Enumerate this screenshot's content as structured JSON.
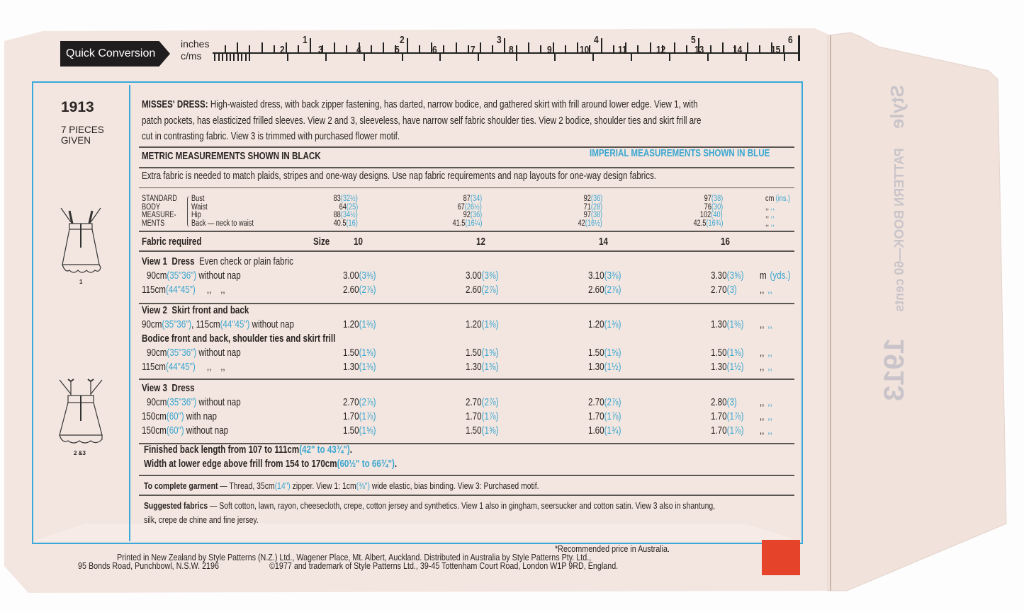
{
  "colors": {
    "paper": "#f3e6e0",
    "frame_blue": "#3aa8d8",
    "imperial_blue": "#3aa6d0",
    "price_box": "#e6432b"
  },
  "ruler": {
    "label": "Quick Conversion",
    "inches_label": "inches",
    "cm_label": "c/ms",
    "inch_ticks": [
      "1",
      "2",
      "3",
      "4",
      "5",
      "6"
    ],
    "cm_ticks": [
      "2",
      "3",
      "4",
      "5",
      "6",
      "7",
      "8",
      "9",
      "10",
      "11",
      "12",
      "13",
      "14",
      "15"
    ]
  },
  "sidebar": {
    "pattern_number": "1913",
    "pieces_line1": "7 PIECES",
    "pieces_line2": "GIVEN",
    "view_label_1": "1",
    "view_label_2": "2 &3"
  },
  "description": {
    "title": "MISSES' DRESS:",
    "line1": " High-waisted dress, with back zipper fastening, has darted, narrow bodice, and gathered skirt with frill around lower edge. View 1, with",
    "line2": "patch pockets, has elasticized frilled sleeves. View 2 and 3, sleeveless, have narrow self fabric shoulder ties. View 2 bodice, shoulder ties and skirt frill are",
    "line3": "cut in contrasting fabric. View 3 is trimmed with purchased flower motif."
  },
  "metric_header": "METRIC MEASUREMENTS SHOWN IN BLACK",
  "imperial_header": "IMPERIAL MEASUREMENTS SHOWN IN BLUE",
  "extra_fabric_note": "Extra fabric is needed to match plaids, stripes and one-way designs. Use nap fabric requirements and nap layouts for one-way design fabrics.",
  "body_measurements": {
    "group_label": [
      "STANDARD",
      "BODY",
      "MEASURE-",
      "MENTS"
    ],
    "rows": [
      {
        "label": "Bust",
        "values": [
          [
            "83",
            "(32½)"
          ],
          [
            "87",
            "(34)"
          ],
          [
            "92",
            "(36)"
          ],
          [
            "97",
            "(38)"
          ]
        ],
        "unit": [
          "cm",
          "(ins.)"
        ]
      },
      {
        "label": "Waist",
        "values": [
          [
            "64",
            "(25)"
          ],
          [
            "67",
            "(26½)"
          ],
          [
            "71",
            "(28)"
          ],
          [
            "76",
            "(30)"
          ]
        ],
        "unit": [
          ",,",
          ",,"
        ]
      },
      {
        "label": "Hip",
        "values": [
          [
            "88",
            "(34½)"
          ],
          [
            "92",
            "(36)"
          ],
          [
            "97",
            "(38)"
          ],
          [
            "102",
            "(40)"
          ]
        ],
        "unit": [
          ",,",
          ",,"
        ]
      },
      {
        "label": "Back — neck to waist",
        "values": [
          [
            "40.5",
            "(16)"
          ],
          [
            "41.5",
            "(16¼)"
          ],
          [
            "42",
            "(16½)"
          ],
          [
            "42.5",
            "(16¾)"
          ]
        ],
        "unit": [
          ",,",
          ",,"
        ]
      }
    ]
  },
  "fabric": {
    "title": "Fabric required",
    "size_label": "Size",
    "sizes": [
      "10",
      "12",
      "14",
      "16"
    ],
    "groups": [
      {
        "heading": "View 1  Dress",
        "heading_note": "  Even check or plain fabric",
        "rows": [
          {
            "parts": [
              [
                "90cm",
                0
              ],
              [
                "(35\"36\")",
                1
              ],
              [
                " without nap",
                0
              ]
            ],
            "values": [
              [
                "3.00",
                "(3⅜)"
              ],
              [
                "3.00",
                "(3⅜)"
              ],
              [
                "3.10",
                "(3⅜)"
              ],
              [
                "3.30",
                "(3⅝)"
              ]
            ],
            "unit": [
              "m",
              "(yds.)"
            ]
          },
          {
            "parts": [
              [
                "115cm",
                0
              ],
              [
                "(44\"45\")",
                1
              ],
              [
                "     ,,    ,,",
                0
              ]
            ],
            "values": [
              [
                "2.60",
                "(2⅞)"
              ],
              [
                "2.60",
                "(2⅞)"
              ],
              [
                "2.60",
                "(2⅞)"
              ],
              [
                "2.70",
                "(3)"
              ]
            ],
            "unit": [
              ",,",
              ",,"
            ]
          }
        ]
      },
      {
        "heading": "View 2  Skirt front and back",
        "heading_note": "",
        "rows": [
          {
            "parts": [
              [
                "90cm",
                0
              ],
              [
                "(35\"36\")",
                1
              ],
              [
                ", 115cm",
                0
              ],
              [
                "(44\"45\")",
                1
              ],
              [
                " without nap",
                0
              ]
            ],
            "values": [
              [
                "1.20",
                "(1⅜)"
              ],
              [
                "1.20",
                "(1⅜)"
              ],
              [
                "1.20",
                "(1⅜)"
              ],
              [
                "1.30",
                "(1⅜)"
              ]
            ],
            "unit": [
              ",,",
              ",,"
            ]
          },
          {
            "subheading": "Bodice front and back, shoulder ties and skirt frill"
          },
          {
            "parts": [
              [
                "90cm",
                0
              ],
              [
                "(35\"36\")",
                1
              ],
              [
                " without nap",
                0
              ]
            ],
            "values": [
              [
                "1.50",
                "(1⅝)"
              ],
              [
                "1.50",
                "(1⅝)"
              ],
              [
                "1.50",
                "(1⅝)"
              ],
              [
                "1.50",
                "(1⅝)"
              ]
            ],
            "unit": [
              ",,",
              ",,"
            ]
          },
          {
            "parts": [
              [
                "115cm",
                0
              ],
              [
                "(44\"45\")",
                1
              ],
              [
                "     ,,    ,,",
                0
              ]
            ],
            "values": [
              [
                "1.30",
                "(1⅜)"
              ],
              [
                "1.30",
                "(1⅜)"
              ],
              [
                "1.30",
                "(1½)"
              ],
              [
                "1.30",
                "(1½)"
              ]
            ],
            "unit": [
              ",,",
              ",,"
            ]
          }
        ]
      },
      {
        "heading": "View 3  Dress",
        "heading_note": "",
        "rows": [
          {
            "parts": [
              [
                "90cm",
                0
              ],
              [
                "(35\"36\")",
                1
              ],
              [
                " without nap",
                0
              ]
            ],
            "values": [
              [
                "2.70",
                "(2⅞)"
              ],
              [
                "2.70",
                "(2⅞)"
              ],
              [
                "2.70",
                "(2⅞)"
              ],
              [
                "2.80",
                "(3)"
              ]
            ],
            "unit": [
              ",,",
              ",,"
            ]
          },
          {
            "parts": [
              [
                "150cm",
                0
              ],
              [
                "(60\")",
                1
              ],
              [
                " with nap",
                0
              ]
            ],
            "values": [
              [
                "1.70",
                "(1⅞)"
              ],
              [
                "1.70",
                "(1⅞)"
              ],
              [
                "1.70",
                "(1⅞)"
              ],
              [
                "1.70",
                "(1⅞)"
              ]
            ],
            "unit": [
              ",,",
              ",,"
            ]
          },
          {
            "parts": [
              [
                "150cm",
                0
              ],
              [
                "(60\")",
                1
              ],
              [
                " without nap",
                0
              ]
            ],
            "values": [
              [
                "1.50",
                "(1⅝)"
              ],
              [
                "1.50",
                "(1⅝)"
              ],
              [
                "1.60",
                "(1¾)"
              ],
              [
                "1.70",
                "(1⅞)"
              ]
            ],
            "unit": [
              ",,",
              ",,"
            ]
          }
        ]
      }
    ]
  },
  "finished": {
    "back_length": "Finished back length from 107 to 111cm",
    "back_length_imp": "(42\" to 43¾\")",
    "width": "Width at lower edge above frill from 154 to 170cm",
    "width_imp": "(60½\" to 66¾\")",
    "end": "."
  },
  "notions": {
    "label": "To complete garment",
    "text1": " — Thread, 35cm",
    "imp1": "(14\")",
    "text2": " zipper. View 1: 1cm",
    "imp2": "(⅜\")",
    "text3": " wide elastic, bias binding. View 3: Purchased motif."
  },
  "suggested": {
    "label": "Suggested fabrics",
    "line1": " — Soft cotton, lawn, rayon, cheesecloth, crepe, cotton jersey and synthetics. View 1 also in gingham, seersucker and cotton satin. View 3 also in shantung,",
    "line2": "silk, crepe de chine and fine jersey."
  },
  "footer": {
    "price_note": "*Recommended price in Australia.",
    "line2": "Printed in New Zealand by Style Patterns (N.Z.) Ltd., Wagener Place, Mt. Albert, Auckland. Distributed in Australia by Style Patterns Pty. Ltd.,",
    "address": "95 Bonds Road, Punchbowl, N.S.W. 2196",
    "copyright": "©1977 and trademark of Style Patterns Ltd., 39-45 Tottenham Court Road, London W1P 9RD, England."
  },
  "flap_show_through": {
    "brand": "Style",
    "line": "PATTERN BOOK—60 cents",
    "number": "1913"
  }
}
